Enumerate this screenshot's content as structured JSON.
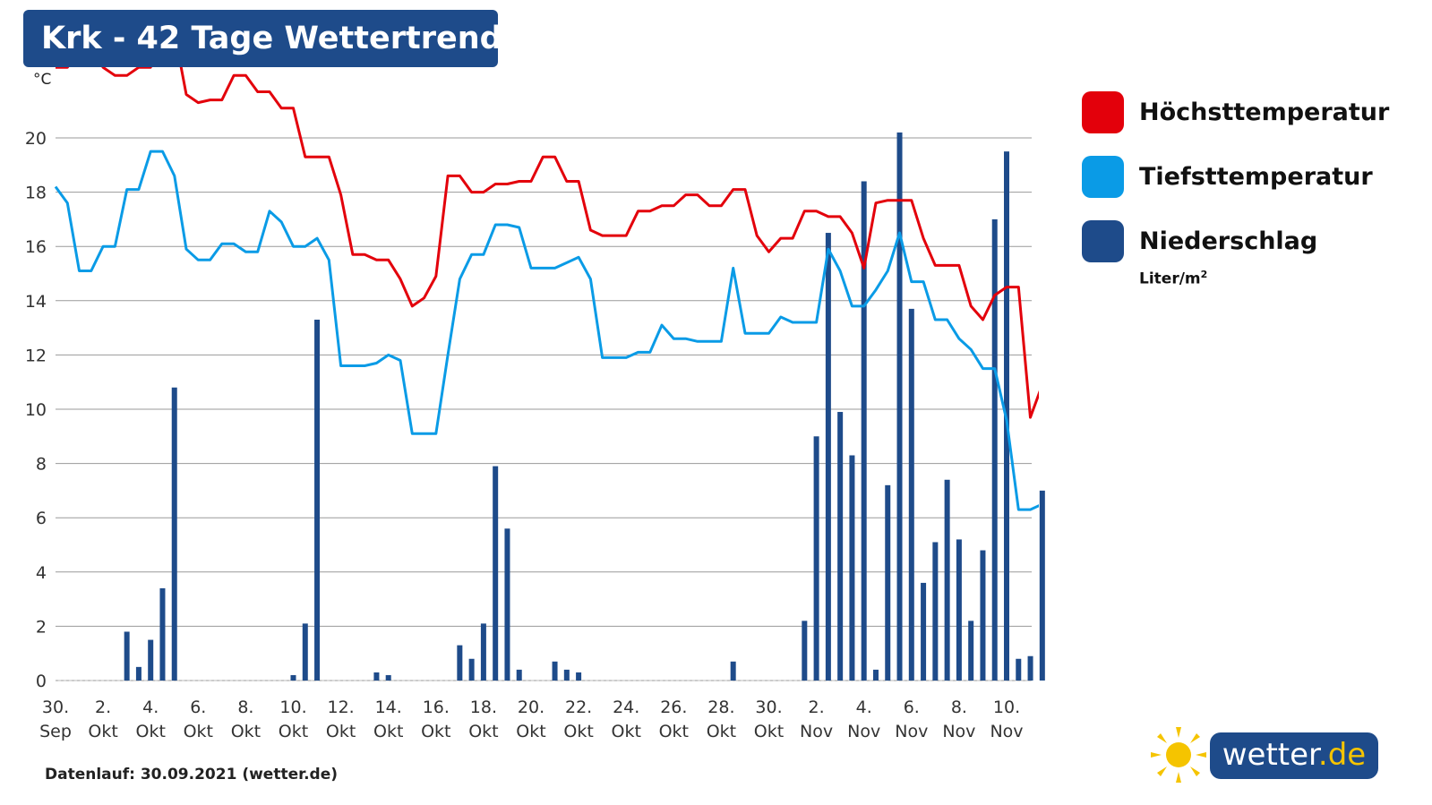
{
  "header": {
    "title": "Krk - 42 Tage Wettertrend"
  },
  "footer": {
    "text": "Datenlauf: 30.09.2021 (wetter.de)"
  },
  "brand": {
    "name": "wetter",
    "tld": ".de"
  },
  "legend": {
    "items": [
      {
        "label": "Höchsttemperatur",
        "color": "#e3000b"
      },
      {
        "label": "Tiefsttemperatur",
        "color": "#0a9be6"
      },
      {
        "label": "Niederschlag",
        "color": "#1e4b8a"
      }
    ],
    "precip_unit": "Liter/m",
    "precip_unit_sup": "2"
  },
  "chart_data": {
    "type": "line",
    "ylabel": "°C",
    "ylim": [
      0,
      22
    ],
    "yticks": [
      0,
      2,
      4,
      6,
      8,
      10,
      12,
      14,
      16,
      18,
      20
    ],
    "grid": true,
    "legend_position": "right",
    "x_range": [
      0,
      41
    ],
    "x_ticks": [
      {
        "x": 0,
        "line1": "30.",
        "line2": "Sep"
      },
      {
        "x": 2,
        "line1": "2.",
        "line2": "Okt"
      },
      {
        "x": 4,
        "line1": "4.",
        "line2": "Okt"
      },
      {
        "x": 6,
        "line1": "6.",
        "line2": "Okt"
      },
      {
        "x": 8,
        "line1": "8.",
        "line2": "Okt"
      },
      {
        "x": 10,
        "line1": "10.",
        "line2": "Okt"
      },
      {
        "x": 12,
        "line1": "12.",
        "line2": "Okt"
      },
      {
        "x": 14,
        "line1": "14.",
        "line2": "Okt"
      },
      {
        "x": 16,
        "line1": "16.",
        "line2": "Okt"
      },
      {
        "x": 18,
        "line1": "18.",
        "line2": "Okt"
      },
      {
        "x": 20,
        "line1": "20.",
        "line2": "Okt"
      },
      {
        "x": 22,
        "line1": "22.",
        "line2": "Okt"
      },
      {
        "x": 24,
        "line1": "24.",
        "line2": "Okt"
      },
      {
        "x": 26,
        "line1": "26.",
        "line2": "Okt"
      },
      {
        "x": 28,
        "line1": "28.",
        "line2": "Okt"
      },
      {
        "x": 30,
        "line1": "30.",
        "line2": "Okt"
      },
      {
        "x": 32,
        "line1": "2.",
        "line2": "Nov"
      },
      {
        "x": 34,
        "line1": "4.",
        "line2": "Nov"
      },
      {
        "x": 36,
        "line1": "6.",
        "line2": "Nov"
      },
      {
        "x": 38,
        "line1": "8.",
        "line2": "Nov"
      },
      {
        "x": 40,
        "line1": "10.",
        "line2": "Nov"
      }
    ],
    "series": [
      {
        "name": "Höchsttemperatur",
        "kind": "line",
        "color": "#e3000b",
        "points": [
          [
            0,
            22.6
          ],
          [
            0.5,
            22.6
          ],
          [
            1,
            23.3
          ],
          [
            1.5,
            23.3
          ],
          [
            2,
            22.6
          ],
          [
            2.5,
            22.3
          ],
          [
            3,
            22.3
          ],
          [
            3.5,
            22.6
          ],
          [
            4,
            22.6
          ],
          [
            4.5,
            23.9
          ],
          [
            5,
            23.9
          ],
          [
            5.5,
            21.6
          ],
          [
            6,
            21.3
          ],
          [
            6.5,
            21.4
          ],
          [
            7,
            21.4
          ],
          [
            7.5,
            22.3
          ],
          [
            8,
            22.3
          ],
          [
            8.5,
            21.7
          ],
          [
            9,
            21.7
          ],
          [
            9.5,
            21.1
          ],
          [
            10,
            21.1
          ],
          [
            10.5,
            19.3
          ],
          [
            11,
            19.3
          ],
          [
            11.5,
            19.3
          ],
          [
            12,
            17.9
          ],
          [
            12.5,
            15.7
          ],
          [
            13,
            15.7
          ],
          [
            13.5,
            15.5
          ],
          [
            14,
            15.5
          ],
          [
            14.5,
            14.8
          ],
          [
            15,
            13.8
          ],
          [
            15.5,
            14.1
          ],
          [
            16,
            14.9
          ],
          [
            16.5,
            18.6
          ],
          [
            17,
            18.6
          ],
          [
            17.5,
            18.0
          ],
          [
            18,
            18.0
          ],
          [
            18.5,
            18.3
          ],
          [
            19,
            18.3
          ],
          [
            19.5,
            18.4
          ],
          [
            20,
            18.4
          ],
          [
            20.5,
            19.3
          ],
          [
            21,
            19.3
          ],
          [
            21.5,
            18.4
          ],
          [
            22,
            18.4
          ],
          [
            22.5,
            16.6
          ],
          [
            23,
            16.4
          ],
          [
            23.5,
            16.4
          ],
          [
            24,
            16.4
          ],
          [
            24.5,
            17.3
          ],
          [
            25,
            17.3
          ],
          [
            25.5,
            17.5
          ],
          [
            26,
            17.5
          ],
          [
            26.5,
            17.9
          ],
          [
            27,
            17.9
          ],
          [
            27.5,
            17.5
          ],
          [
            28,
            17.5
          ],
          [
            28.5,
            18.1
          ],
          [
            29,
            18.1
          ],
          [
            29.5,
            16.4
          ],
          [
            30,
            15.8
          ],
          [
            30.5,
            16.3
          ],
          [
            31,
            16.3
          ],
          [
            31.5,
            17.3
          ],
          [
            32,
            17.3
          ],
          [
            32.5,
            17.1
          ],
          [
            33,
            17.1
          ],
          [
            33.5,
            16.5
          ],
          [
            34,
            15.2
          ],
          [
            34.5,
            17.6
          ],
          [
            35,
            17.7
          ],
          [
            35.5,
            17.7
          ],
          [
            36,
            17.7
          ],
          [
            36.5,
            16.3
          ],
          [
            37,
            15.3
          ],
          [
            37.5,
            15.3
          ],
          [
            38,
            15.3
          ],
          [
            38.5,
            13.8
          ],
          [
            39,
            13.3
          ],
          [
            39.5,
            14.2
          ],
          [
            40,
            14.5
          ],
          [
            40.5,
            14.5
          ],
          [
            41,
            9.7
          ],
          [
            41.5,
            10.9
          ]
        ]
      },
      {
        "name": "Tiefsttemperatur",
        "kind": "line",
        "color": "#0a9be6",
        "points": [
          [
            0,
            18.2
          ],
          [
            0.5,
            17.6
          ],
          [
            1,
            15.1
          ],
          [
            1.5,
            15.1
          ],
          [
            2,
            16.0
          ],
          [
            2.5,
            16.0
          ],
          [
            3,
            18.1
          ],
          [
            3.5,
            18.1
          ],
          [
            4,
            19.5
          ],
          [
            4.5,
            19.5
          ],
          [
            5,
            18.6
          ],
          [
            5.5,
            15.9
          ],
          [
            6,
            15.5
          ],
          [
            6.5,
            15.5
          ],
          [
            7,
            16.1
          ],
          [
            7.5,
            16.1
          ],
          [
            8,
            15.8
          ],
          [
            8.5,
            15.8
          ],
          [
            9,
            17.3
          ],
          [
            9.5,
            16.9
          ],
          [
            10,
            16.0
          ],
          [
            10.5,
            16.0
          ],
          [
            11,
            16.3
          ],
          [
            11.5,
            15.5
          ],
          [
            12,
            11.6
          ],
          [
            12.5,
            11.6
          ],
          [
            13,
            11.6
          ],
          [
            13.5,
            11.7
          ],
          [
            14,
            12.0
          ],
          [
            14.5,
            11.8
          ],
          [
            15,
            9.1
          ],
          [
            15.5,
            9.1
          ],
          [
            16,
            9.1
          ],
          [
            16.5,
            12.0
          ],
          [
            17,
            14.8
          ],
          [
            17.5,
            15.7
          ],
          [
            18,
            15.7
          ],
          [
            18.5,
            16.8
          ],
          [
            19,
            16.8
          ],
          [
            19.5,
            16.7
          ],
          [
            20,
            15.2
          ],
          [
            20.5,
            15.2
          ],
          [
            21,
            15.2
          ],
          [
            21.5,
            15.4
          ],
          [
            22,
            15.6
          ],
          [
            22.5,
            14.8
          ],
          [
            23,
            11.9
          ],
          [
            23.5,
            11.9
          ],
          [
            24,
            11.9
          ],
          [
            24.5,
            12.1
          ],
          [
            25,
            12.1
          ],
          [
            25.5,
            13.1
          ],
          [
            26,
            12.6
          ],
          [
            26.5,
            12.6
          ],
          [
            27,
            12.5
          ],
          [
            27.5,
            12.5
          ],
          [
            28,
            12.5
          ],
          [
            28.5,
            15.2
          ],
          [
            29,
            12.8
          ],
          [
            29.5,
            12.8
          ],
          [
            30,
            12.8
          ],
          [
            30.5,
            13.4
          ],
          [
            31,
            13.2
          ],
          [
            31.5,
            13.2
          ],
          [
            32,
            13.2
          ],
          [
            32.5,
            15.9
          ],
          [
            33,
            15.1
          ],
          [
            33.5,
            13.8
          ],
          [
            34,
            13.8
          ],
          [
            34.5,
            14.4
          ],
          [
            35,
            15.1
          ],
          [
            35.5,
            16.5
          ],
          [
            36,
            14.7
          ],
          [
            36.5,
            14.7
          ],
          [
            37,
            13.3
          ],
          [
            37.5,
            13.3
          ],
          [
            38,
            12.6
          ],
          [
            38.5,
            12.2
          ],
          [
            39,
            11.5
          ],
          [
            39.5,
            11.5
          ],
          [
            40,
            9.6
          ],
          [
            40.5,
            6.3
          ],
          [
            41,
            6.3
          ],
          [
            41.5,
            6.5
          ]
        ]
      },
      {
        "name": "Niederschlag",
        "kind": "bar",
        "color": "#1e4b8a",
        "points": [
          [
            3,
            1.8
          ],
          [
            3.5,
            0.5
          ],
          [
            4,
            1.5
          ],
          [
            4.5,
            3.4
          ],
          [
            5,
            10.8
          ],
          [
            10,
            0.2
          ],
          [
            10.5,
            2.1
          ],
          [
            11,
            13.3
          ],
          [
            13.5,
            0.3
          ],
          [
            14,
            0.2
          ],
          [
            17,
            1.3
          ],
          [
            17.5,
            0.8
          ],
          [
            18,
            2.1
          ],
          [
            18.5,
            7.9
          ],
          [
            19,
            5.6
          ],
          [
            19.5,
            0.4
          ],
          [
            21,
            0.7
          ],
          [
            21.5,
            0.4
          ],
          [
            22,
            0.3
          ],
          [
            28.5,
            0.7
          ],
          [
            31.5,
            2.2
          ],
          [
            32,
            9.0
          ],
          [
            32.5,
            16.5
          ],
          [
            33,
            9.9
          ],
          [
            33.5,
            8.3
          ],
          [
            34,
            18.4
          ],
          [
            34.5,
            0.4
          ],
          [
            35,
            7.2
          ],
          [
            35.5,
            20.2
          ],
          [
            36,
            13.7
          ],
          [
            36.5,
            3.6
          ],
          [
            37,
            5.1
          ],
          [
            37.5,
            7.4
          ],
          [
            38,
            5.2
          ],
          [
            38.5,
            2.2
          ],
          [
            39,
            4.8
          ],
          [
            39.5,
            17.0
          ],
          [
            40,
            19.5
          ],
          [
            40.5,
            0.8
          ],
          [
            41,
            0.9
          ],
          [
            41.5,
            7.0
          ]
        ]
      }
    ]
  }
}
